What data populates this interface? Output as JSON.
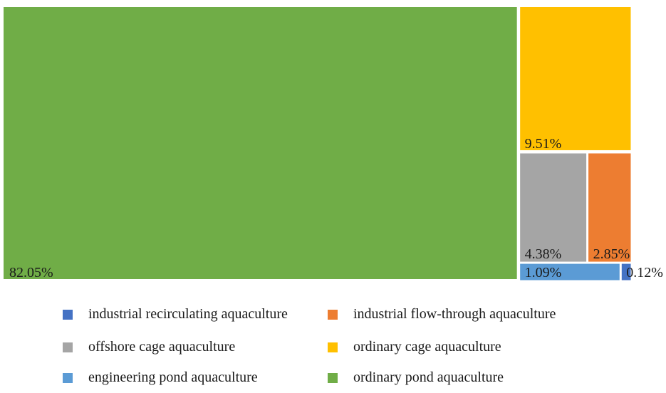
{
  "chart_data": {
    "type": "treemap",
    "items": [
      {
        "name": "ordinary pond aquaculture",
        "value": 82.05,
        "label": "82.05%",
        "color": "#70AD47"
      },
      {
        "name": "ordinary cage aquaculture",
        "value": 9.51,
        "label": "9.51%",
        "color": "#FFC000"
      },
      {
        "name": "offshore cage aquaculture",
        "value": 4.38,
        "label": "4.38%",
        "color": "#A5A5A5"
      },
      {
        "name": "industrial flow-through aquaculture",
        "value": 2.85,
        "label": "2.85%",
        "color": "#ED7D31"
      },
      {
        "name": "engineering pond aquaculture",
        "value": 1.09,
        "label": "1.09%",
        "color": "#5B9BD5"
      },
      {
        "name": "industrial recirculating aquaculture",
        "value": 0.12,
        "label": "0.12%",
        "color": "#4472C4"
      }
    ],
    "legend": [
      {
        "label": "industrial recirculating aquaculture",
        "color": "#4472C4"
      },
      {
        "label": "industrial flow-through aquaculture",
        "color": "#ED7D31"
      },
      {
        "label": "offshore cage aquaculture",
        "color": "#A5A5A5"
      },
      {
        "label": "ordinary cage aquaculture",
        "color": "#FFC000"
      },
      {
        "label": "engineering pond aquaculture",
        "color": "#5B9BD5"
      },
      {
        "label": "ordinary pond aquaculture",
        "color": "#70AD47"
      }
    ],
    "legend_position": "bottom"
  }
}
